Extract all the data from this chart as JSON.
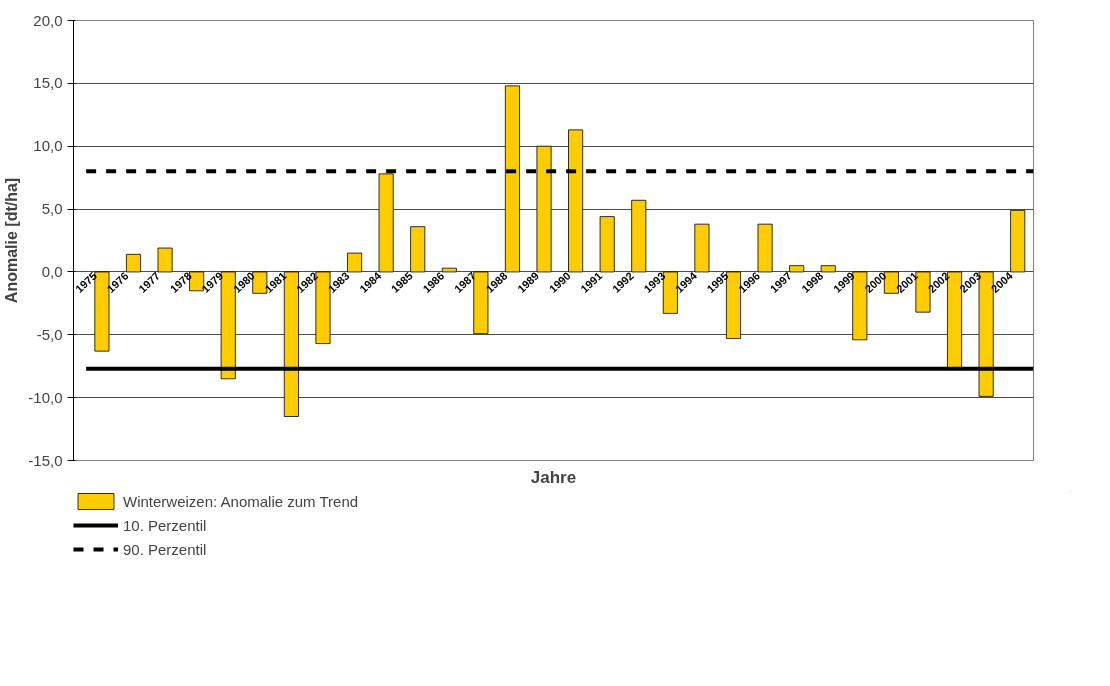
{
  "chart_data": {
    "type": "bar",
    "xlabel": "Jahre",
    "ylabel": "Anomalie [dt/ha]",
    "categories": [
      "1975",
      "1976",
      "1977",
      "1978",
      "1979",
      "1980",
      "1981",
      "1982",
      "1983",
      "1984",
      "1985",
      "1986",
      "1987",
      "1988",
      "1989",
      "1990",
      "1991",
      "1992",
      "1993",
      "1994",
      "1995",
      "1996",
      "1997",
      "1998",
      "1999",
      "2000",
      "2001",
      "2002",
      "2003",
      "2004"
    ],
    "series": [
      {
        "name": "Winterweizen: Anomalie zum Trend",
        "color": "#ffcc00",
        "values": [
          -6.3,
          1.4,
          1.9,
          -1.5,
          -8.5,
          -1.7,
          -11.5,
          -5.7,
          1.5,
          7.8,
          3.6,
          0.3,
          -4.9,
          14.8,
          10.0,
          11.3,
          4.4,
          5.7,
          -3.3,
          3.8,
          -5.3,
          3.8,
          0.5,
          0.5,
          -5.4,
          -1.7,
          -3.2,
          -7.7,
          -9.9,
          4.9
        ]
      }
    ],
    "ylim": [
      -15,
      20
    ],
    "yticks": [
      {
        "value": -15,
        "label": "-15,0"
      },
      {
        "value": -10,
        "label": "-10,0"
      },
      {
        "value": -5,
        "label": "-5,0"
      },
      {
        "value": 0,
        "label": "0,0"
      },
      {
        "value": 5,
        "label": "5,0"
      },
      {
        "value": 10,
        "label": "10,0"
      },
      {
        "value": 15,
        "label": "15,0"
      },
      {
        "value": 20,
        "label": "20,0"
      }
    ],
    "ref_lines": [
      {
        "axis": "y",
        "value": -7.7,
        "label": "10. Perzentil",
        "color": "#000000",
        "line_style": "solid"
      },
      {
        "axis": "y",
        "value": 8.0,
        "label": "90. Perzentil",
        "color": "#000000",
        "line_style": "dashed"
      }
    ],
    "grid": "y",
    "legend": "bottom left"
  }
}
